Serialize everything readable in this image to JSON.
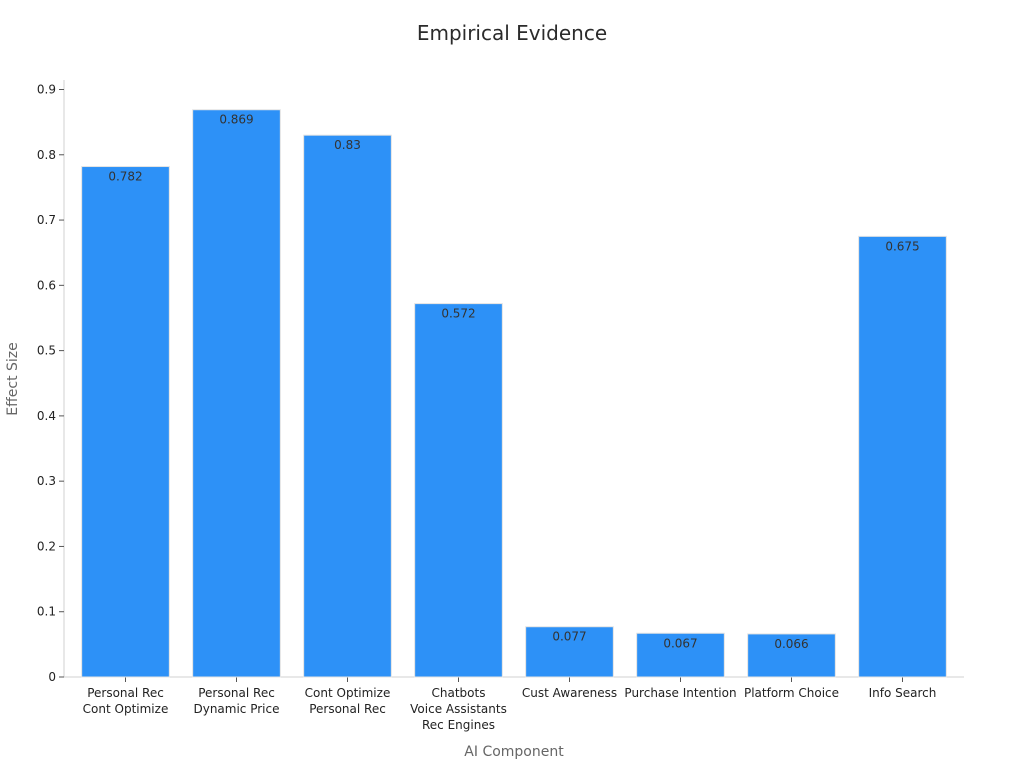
{
  "chart_data": {
    "type": "bar",
    "title": "Empirical Evidence",
    "xlabel": "AI Component",
    "ylabel": "Effect Size",
    "ylim": [
      0,
      0.9
    ],
    "yticks": [
      0,
      0.1,
      0.2,
      0.3,
      0.4,
      0.5,
      0.6,
      0.7,
      0.8,
      0.9
    ],
    "ytick_labels": [
      "0",
      "0.1",
      "0.2",
      "0.3",
      "0.4",
      "0.5",
      "0.6",
      "0.7",
      "0.8",
      "0.9"
    ],
    "categories": [
      [
        "Personal Rec",
        "Cont Optimize"
      ],
      [
        "Personal Rec",
        "Dynamic Price"
      ],
      [
        "Cont Optimize",
        "Personal Rec"
      ],
      [
        "Chatbots",
        "Voice Assistants",
        "Rec Engines"
      ],
      [
        "Cust Awareness"
      ],
      [
        "Purchase Intention"
      ],
      [
        "Platform Choice"
      ],
      [
        "Info Search"
      ]
    ],
    "values": [
      0.782,
      0.869,
      0.83,
      0.572,
      0.077,
      0.067,
      0.066,
      0.675
    ],
    "value_labels": [
      "0.782",
      "0.869",
      "0.83",
      "0.572",
      "0.077",
      "0.067",
      "0.066",
      "0.675"
    ],
    "bar_color": "#2d91f7",
    "grid": false,
    "legend": "none"
  }
}
